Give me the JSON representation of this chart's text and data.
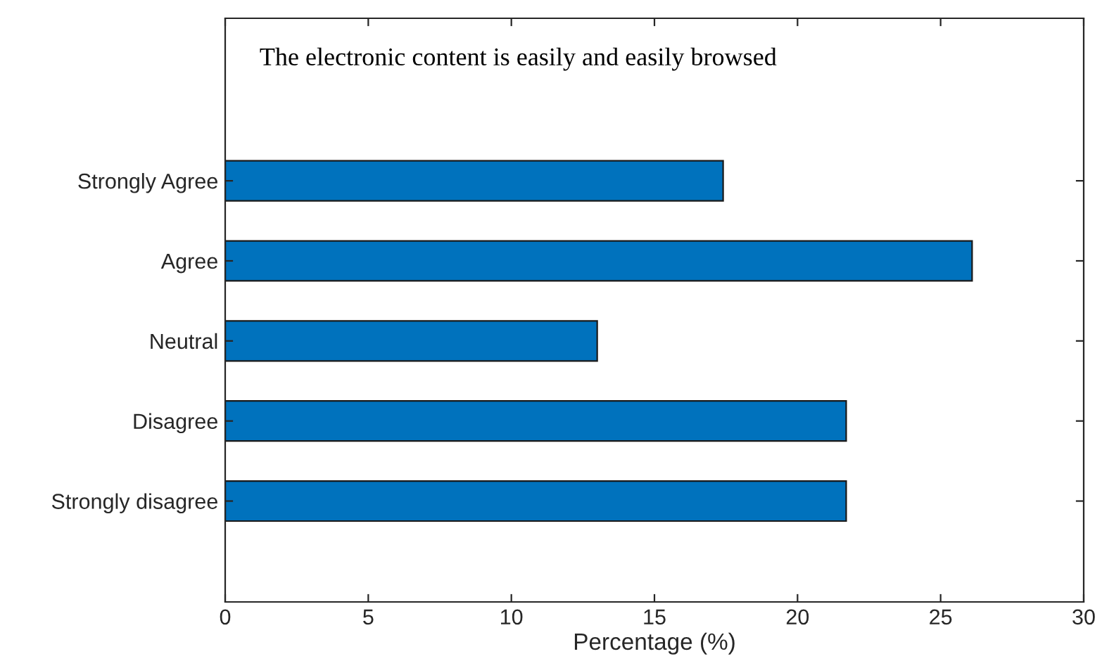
{
  "chart_data": {
    "type": "bar",
    "orientation": "horizontal",
    "title": "The electronic content is easily and easily browsed",
    "xlabel": "Percentage (%)",
    "categories": [
      "Strongly Agree",
      "Agree",
      "Neutral",
      "Disagree",
      "Strongly disagree"
    ],
    "series": [
      {
        "color": "#0072bd",
        "values": [
          17.4,
          26.1,
          13.0,
          21.7,
          21.7
        ]
      }
    ],
    "xlim": [
      0,
      30
    ],
    "xticks": [
      0,
      5,
      10,
      15,
      20,
      25,
      30
    ],
    "grid": false,
    "legend": false
  }
}
